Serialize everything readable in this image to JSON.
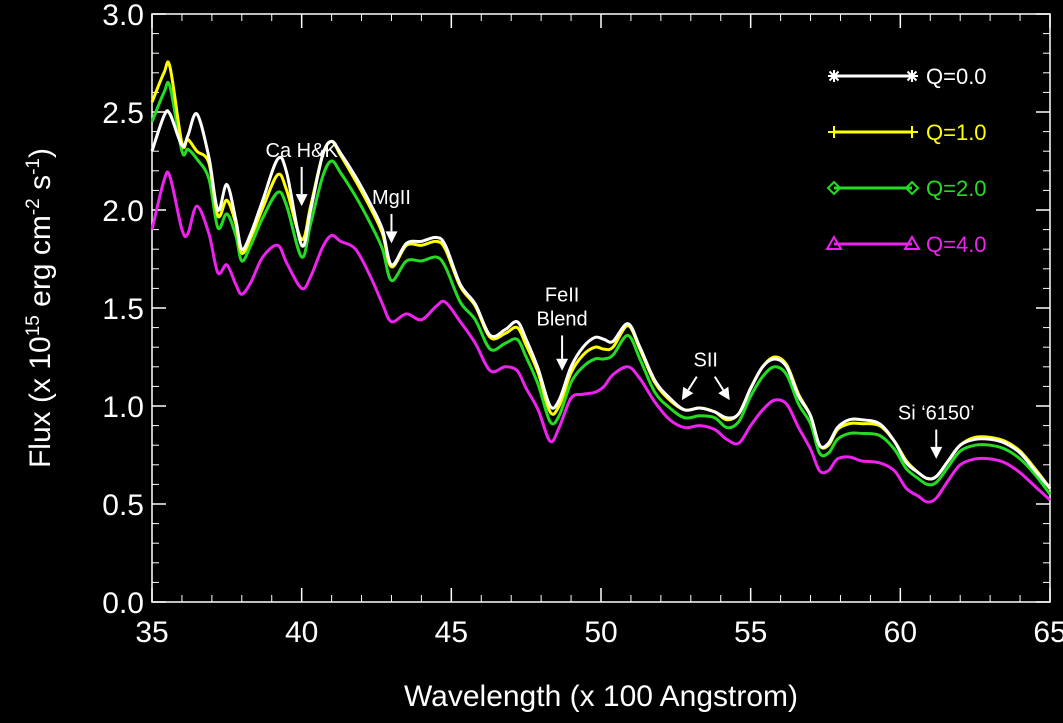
{
  "chart_data": {
    "type": "line",
    "title": "",
    "xlabel": "Wavelength (x 100 Angstrom)",
    "ylabel": {
      "prefix": "Flux (x 10",
      "exp1": "15",
      "mid": " erg cm",
      "exp2": "-2",
      "mid2": " s",
      "exp3": "-1",
      "suffix": ")"
    },
    "xlim": [
      35,
      65
    ],
    "ylim": [
      0.0,
      3.0
    ],
    "xticks": [
      "35",
      "40",
      "45",
      "50",
      "55",
      "60",
      "65"
    ],
    "yticks": [
      "0.0",
      "0.5",
      "1.0",
      "1.5",
      "2.0",
      "2.5",
      "3.0"
    ],
    "grid": false,
    "legend_position": "top-right",
    "series": [
      {
        "name": "Q=0.0",
        "color": "#ffffff",
        "marker": "asterisk",
        "x": [
          35.0,
          35.4,
          35.6,
          36.0,
          36.2,
          36.5,
          36.9,
          37.2,
          37.5,
          37.8,
          38.0,
          38.3,
          38.7,
          39.2,
          39.5,
          40.0,
          40.3,
          40.7,
          41.0,
          41.3,
          41.8,
          42.3,
          42.7,
          43.0,
          43.5,
          44.0,
          44.5,
          44.8,
          45.3,
          45.8,
          46.3,
          46.8,
          47.2,
          47.5,
          47.9,
          48.3,
          48.6,
          49.0,
          49.4,
          49.8,
          50.1,
          50.4,
          50.9,
          51.3,
          51.8,
          52.3,
          52.8,
          53.3,
          53.8,
          54.2,
          54.6,
          55.0,
          55.4,
          55.8,
          56.2,
          56.6,
          57.0,
          57.3,
          57.6,
          57.9,
          58.3,
          58.7,
          59.3,
          59.8,
          60.2,
          60.6,
          60.9,
          61.2,
          61.6,
          62.0,
          62.5,
          63.0,
          63.5,
          64.0,
          64.5,
          65.0
        ],
        "y": [
          2.3,
          2.48,
          2.49,
          2.33,
          2.38,
          2.49,
          2.27,
          2.0,
          2.13,
          1.95,
          1.8,
          1.88,
          2.05,
          2.26,
          2.19,
          1.82,
          2.0,
          2.28,
          2.35,
          2.29,
          2.17,
          2.03,
          1.9,
          1.72,
          1.83,
          1.84,
          1.86,
          1.82,
          1.62,
          1.52,
          1.36,
          1.39,
          1.43,
          1.34,
          1.19,
          1.0,
          1.03,
          1.2,
          1.3,
          1.35,
          1.34,
          1.33,
          1.42,
          1.3,
          1.13,
          1.04,
          0.98,
          0.99,
          0.97,
          0.94,
          0.96,
          1.09,
          1.2,
          1.24,
          1.2,
          1.05,
          0.95,
          0.8,
          0.81,
          0.89,
          0.93,
          0.93,
          0.91,
          0.82,
          0.71,
          0.66,
          0.63,
          0.64,
          0.72,
          0.8,
          0.83,
          0.83,
          0.81,
          0.76,
          0.67,
          0.58
        ]
      },
      {
        "name": "Q=1.0",
        "color": "#ffff00",
        "marker": "plus",
        "x": [
          35.0,
          35.4,
          35.6,
          36.0,
          36.2,
          36.5,
          36.9,
          37.2,
          37.5,
          37.8,
          38.0,
          38.3,
          38.7,
          39.2,
          39.5,
          40.0,
          40.3,
          40.7,
          41.0,
          41.3,
          41.8,
          42.3,
          42.7,
          43.0,
          43.5,
          44.0,
          44.5,
          44.8,
          45.3,
          45.8,
          46.3,
          46.8,
          47.2,
          47.5,
          47.9,
          48.3,
          48.6,
          49.0,
          49.4,
          49.8,
          50.1,
          50.4,
          50.9,
          51.3,
          51.8,
          52.3,
          52.8,
          53.3,
          53.8,
          54.2,
          54.6,
          55.0,
          55.4,
          55.8,
          56.2,
          56.6,
          57.0,
          57.3,
          57.6,
          57.9,
          58.3,
          58.7,
          59.3,
          59.8,
          60.2,
          60.6,
          60.9,
          61.2,
          61.6,
          62.0,
          62.5,
          63.0,
          63.5,
          64.0,
          64.5,
          65.0
        ],
        "y": [
          2.55,
          2.7,
          2.73,
          2.34,
          2.36,
          2.3,
          2.24,
          1.97,
          2.05,
          1.93,
          1.78,
          1.86,
          2.01,
          2.18,
          2.1,
          1.85,
          2.02,
          2.28,
          2.35,
          2.28,
          2.15,
          2.01,
          1.88,
          1.71,
          1.82,
          1.82,
          1.84,
          1.8,
          1.61,
          1.51,
          1.35,
          1.37,
          1.4,
          1.31,
          1.17,
          0.97,
          1.0,
          1.17,
          1.26,
          1.3,
          1.29,
          1.3,
          1.41,
          1.29,
          1.12,
          1.03,
          0.98,
          0.99,
          0.97,
          0.93,
          0.96,
          1.09,
          1.2,
          1.25,
          1.21,
          1.06,
          0.95,
          0.8,
          0.8,
          0.88,
          0.91,
          0.91,
          0.9,
          0.82,
          0.72,
          0.66,
          0.63,
          0.64,
          0.72,
          0.8,
          0.84,
          0.84,
          0.82,
          0.77,
          0.68,
          0.58
        ]
      },
      {
        "name": "Q=2.0",
        "color": "#22dd22",
        "marker": "diamond",
        "x": [
          35.0,
          35.4,
          35.6,
          36.0,
          36.2,
          36.5,
          36.9,
          37.2,
          37.5,
          37.8,
          38.0,
          38.3,
          38.7,
          39.2,
          39.5,
          40.0,
          40.3,
          40.7,
          41.0,
          41.3,
          41.8,
          42.3,
          42.7,
          43.0,
          43.5,
          44.0,
          44.5,
          44.8,
          45.3,
          45.8,
          46.3,
          46.8,
          47.2,
          47.5,
          47.9,
          48.3,
          48.6,
          49.0,
          49.4,
          49.8,
          50.1,
          50.4,
          50.9,
          51.3,
          51.8,
          52.3,
          52.8,
          53.3,
          53.8,
          54.2,
          54.6,
          55.0,
          55.4,
          55.8,
          56.2,
          56.6,
          57.0,
          57.3,
          57.6,
          57.9,
          58.3,
          58.7,
          59.3,
          59.8,
          60.2,
          60.6,
          60.9,
          61.2,
          61.6,
          62.0,
          62.5,
          63.0,
          63.5,
          64.0,
          64.5,
          65.0
        ],
        "y": [
          2.45,
          2.6,
          2.63,
          2.3,
          2.31,
          2.26,
          2.16,
          1.91,
          1.98,
          1.87,
          1.74,
          1.82,
          1.96,
          2.09,
          2.02,
          1.76,
          1.93,
          2.17,
          2.25,
          2.19,
          2.07,
          1.93,
          1.8,
          1.64,
          1.74,
          1.74,
          1.76,
          1.71,
          1.53,
          1.44,
          1.29,
          1.32,
          1.34,
          1.25,
          1.11,
          0.92,
          0.95,
          1.12,
          1.2,
          1.24,
          1.24,
          1.26,
          1.36,
          1.24,
          1.07,
          0.99,
          0.94,
          0.95,
          0.94,
          0.89,
          0.92,
          1.05,
          1.15,
          1.2,
          1.16,
          1.01,
          0.91,
          0.76,
          0.76,
          0.83,
          0.86,
          0.86,
          0.85,
          0.78,
          0.68,
          0.63,
          0.6,
          0.61,
          0.69,
          0.77,
          0.8,
          0.8,
          0.78,
          0.73,
          0.65,
          0.55
        ]
      },
      {
        "name": "Q=4.0",
        "color": "#ee22ee",
        "marker": "triangle",
        "x": [
          35.0,
          35.4,
          35.6,
          36.0,
          36.2,
          36.5,
          36.9,
          37.2,
          37.5,
          37.8,
          38.0,
          38.3,
          38.7,
          39.2,
          39.5,
          40.0,
          40.3,
          40.7,
          41.0,
          41.3,
          41.8,
          42.3,
          42.7,
          43.0,
          43.5,
          44.0,
          44.5,
          44.8,
          45.3,
          45.8,
          46.3,
          46.8,
          47.2,
          47.5,
          47.9,
          48.3,
          48.6,
          49.0,
          49.4,
          49.8,
          50.1,
          50.4,
          50.9,
          51.3,
          51.8,
          52.3,
          52.8,
          53.3,
          53.8,
          54.2,
          54.6,
          55.0,
          55.4,
          55.8,
          56.2,
          56.6,
          57.0,
          57.3,
          57.6,
          57.9,
          58.3,
          58.7,
          59.3,
          59.8,
          60.2,
          60.6,
          60.9,
          61.2,
          61.6,
          62.0,
          62.5,
          63.0,
          63.5,
          64.0,
          64.5,
          65.0
        ],
        "y": [
          1.9,
          2.15,
          2.17,
          1.9,
          1.88,
          2.02,
          1.88,
          1.68,
          1.72,
          1.62,
          1.57,
          1.63,
          1.76,
          1.82,
          1.73,
          1.6,
          1.66,
          1.81,
          1.87,
          1.84,
          1.8,
          1.66,
          1.52,
          1.43,
          1.47,
          1.44,
          1.51,
          1.53,
          1.43,
          1.32,
          1.18,
          1.2,
          1.18,
          1.09,
          0.98,
          0.82,
          0.89,
          1.04,
          1.06,
          1.07,
          1.1,
          1.16,
          1.2,
          1.14,
          1.02,
          0.93,
          0.89,
          0.9,
          0.88,
          0.83,
          0.81,
          0.9,
          0.98,
          1.03,
          1.01,
          0.89,
          0.78,
          0.67,
          0.67,
          0.73,
          0.74,
          0.72,
          0.71,
          0.67,
          0.58,
          0.54,
          0.51,
          0.53,
          0.62,
          0.7,
          0.73,
          0.73,
          0.71,
          0.66,
          0.59,
          0.52
        ]
      }
    ],
    "annotations": [
      {
        "lines": [
          "Ca H&K"
        ],
        "arrows": [
          {
            "x_from": 40.0,
            "y_from": 2.22,
            "x_to": 40.0,
            "y_to": 2.02
          }
        ]
      },
      {
        "lines": [
          "MgII"
        ],
        "arrows": [
          {
            "x_from": 43.0,
            "y_from": 1.98,
            "x_to": 43.0,
            "y_to": 1.83
          }
        ]
      },
      {
        "lines": [
          "FeII",
          "Blend"
        ],
        "arrows": [
          {
            "x_from": 48.7,
            "y_from": 1.36,
            "x_to": 48.7,
            "y_to": 1.18
          }
        ]
      },
      {
        "lines": [
          "SII"
        ],
        "arrows": [
          {
            "x_from": 53.2,
            "y_from": 1.15,
            "x_to": 52.7,
            "y_to": 1.03
          },
          {
            "x_from": 53.8,
            "y_from": 1.15,
            "x_to": 54.3,
            "y_to": 1.03
          }
        ]
      },
      {
        "lines": [
          "Si ‘6150’"
        ],
        "arrows": [
          {
            "x_from": 61.2,
            "y_from": 0.88,
            "x_to": 61.2,
            "y_to": 0.73
          }
        ]
      }
    ]
  }
}
